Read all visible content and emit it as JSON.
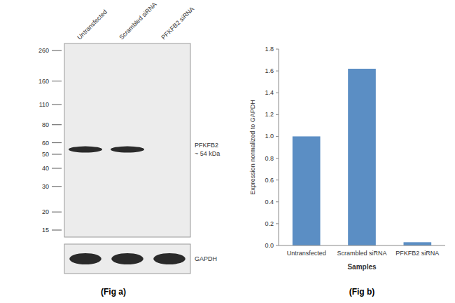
{
  "chart_data": [
    {
      "type": "blot",
      "title": "(Fig a)",
      "categories": [
        "Untransfected",
        "Scrambled siRNA",
        "PFKFB2 siRNA"
      ],
      "log": "y",
      "ylim": [
        15,
        260
      ],
      "yticks": [
        260,
        160,
        110,
        80,
        60,
        50,
        40,
        30,
        20,
        15
      ],
      "color": "#2a2a2a",
      "series": [
        {
          "name": "PFKFB2\n~ 54 kDa",
          "values": [
            54,
            54,
            null
          ]
        }
      ],
      "annotations": [
        "GAPDH"
      ]
    },
    {
      "type": "bar",
      "title": "(Fig b)",
      "categories": [
        "Untransfected",
        "Scrambled siRNA",
        "PFKFB2 siRNA"
      ],
      "values": [
        1.0,
        1.62,
        0.03
      ],
      "color": "#5b8ec4",
      "xlabel": "Samples",
      "ylabel": "Expression normalized to GAPDH",
      "ylim": [
        0,
        1.8
      ],
      "yticks": [
        {
          "value": 0,
          "label": "0.0"
        },
        0.2,
        0.4,
        0.6,
        0.8,
        {
          "value": 1.0,
          "label": "1.0"
        },
        1.2,
        1.4,
        1.6,
        1.8
      ],
      "grid": false
    }
  ]
}
